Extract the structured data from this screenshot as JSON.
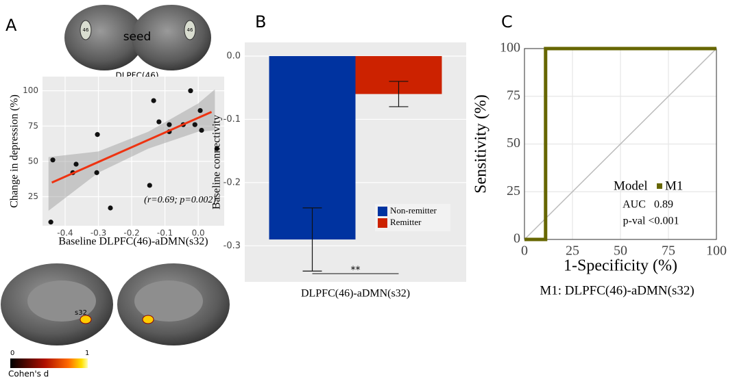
{
  "figure": {
    "brain_top": {
      "label": "seed",
      "region": "DLPFC(46)",
      "marks": [
        "46",
        "46"
      ]
    },
    "brain_medial": {
      "label": "s32"
    },
    "colorbar": {
      "title": "Cohen's d",
      "ticks": [
        "0",
        "1"
      ]
    }
  },
  "chart_data": [
    {
      "type": "scatter",
      "panel": "A",
      "xlabel": "Baseline DLPFC(46)-aDMN(s32)",
      "ylabel": "Change in depression (%)",
      "annotation": "(r=0.69; p=0.002)",
      "x": [
        -0.437,
        -0.443,
        -0.367,
        -0.377,
        -0.303,
        -0.305,
        -0.264,
        -0.146,
        -0.134,
        -0.118,
        -0.087,
        -0.087,
        -0.045,
        -0.023,
        -0.01,
        0.006,
        0.01,
        0.056
      ],
      "values": [
        51,
        7,
        48,
        42,
        69,
        42,
        17,
        33,
        93,
        78,
        76,
        71,
        76,
        100,
        76,
        86,
        72,
        59
      ],
      "color": "#111111",
      "fit": {
        "x": [
          -0.44,
          0.04
        ],
        "values": [
          35,
          85
        ],
        "color": "#ee3311"
      },
      "band": {
        "x": [
          -0.45,
          -0.3,
          -0.15,
          0,
          0.05
        ],
        "upper": [
          53,
          57,
          71,
          91,
          101
        ],
        "lower": [
          15,
          42,
          59,
          71,
          72
        ]
      },
      "xlim": [
        -0.468,
        0.078
      ],
      "ylim": [
        4.4,
        110
      ],
      "xticks": [
        -0.4,
        -0.3,
        -0.2,
        -0.1,
        {
          "value": 0,
          "label": "0.0"
        }
      ],
      "yticks": [
        25,
        50,
        75,
        100
      ],
      "grid": true
    },
    {
      "type": "bar",
      "panel": "B",
      "ylabel": "Baseline connectivity",
      "categories": [
        "DLPFC(46)-aDMN(s32)"
      ],
      "series": [
        {
          "name": "Non-remitter",
          "color": "#0033a0",
          "values": [
            -0.29
          ],
          "errors": [
            0.05
          ]
        },
        {
          "name": "Remitter",
          "color": "#cc2200",
          "values": [
            -0.06
          ],
          "errors": [
            0.02
          ]
        }
      ],
      "significance": "**",
      "ylim": [
        -0.357,
        0.0216
      ],
      "yticks": [
        {
          "value": 0,
          "label": "0.0"
        },
        -0.1,
        -0.2,
        -0.3
      ],
      "legend": "bottom-right",
      "grid": true
    },
    {
      "type": "line",
      "panel": "C",
      "xlabel": "1-Specificity (%)",
      "ylabel": "Sensitivity (%)",
      "caption": "M1: DLPFC(46)-aDMN(s32)",
      "x": [
        0,
        11,
        11,
        100
      ],
      "series": [
        {
          "name": "M1",
          "color": "#666600",
          "values": [
            0,
            0,
            100,
            100
          ]
        }
      ],
      "legend_title": "Model",
      "stats": [
        [
          "AUC",
          "0.89"
        ],
        [
          "p-val",
          "<0.001"
        ]
      ],
      "xlim": [
        0,
        100
      ],
      "ylim": [
        0,
        100
      ],
      "xticks": [
        0,
        25,
        50,
        75,
        100
      ],
      "yticks": [
        0,
        25,
        50,
        75,
        100
      ],
      "grid": true,
      "legend": "center-right"
    }
  ]
}
